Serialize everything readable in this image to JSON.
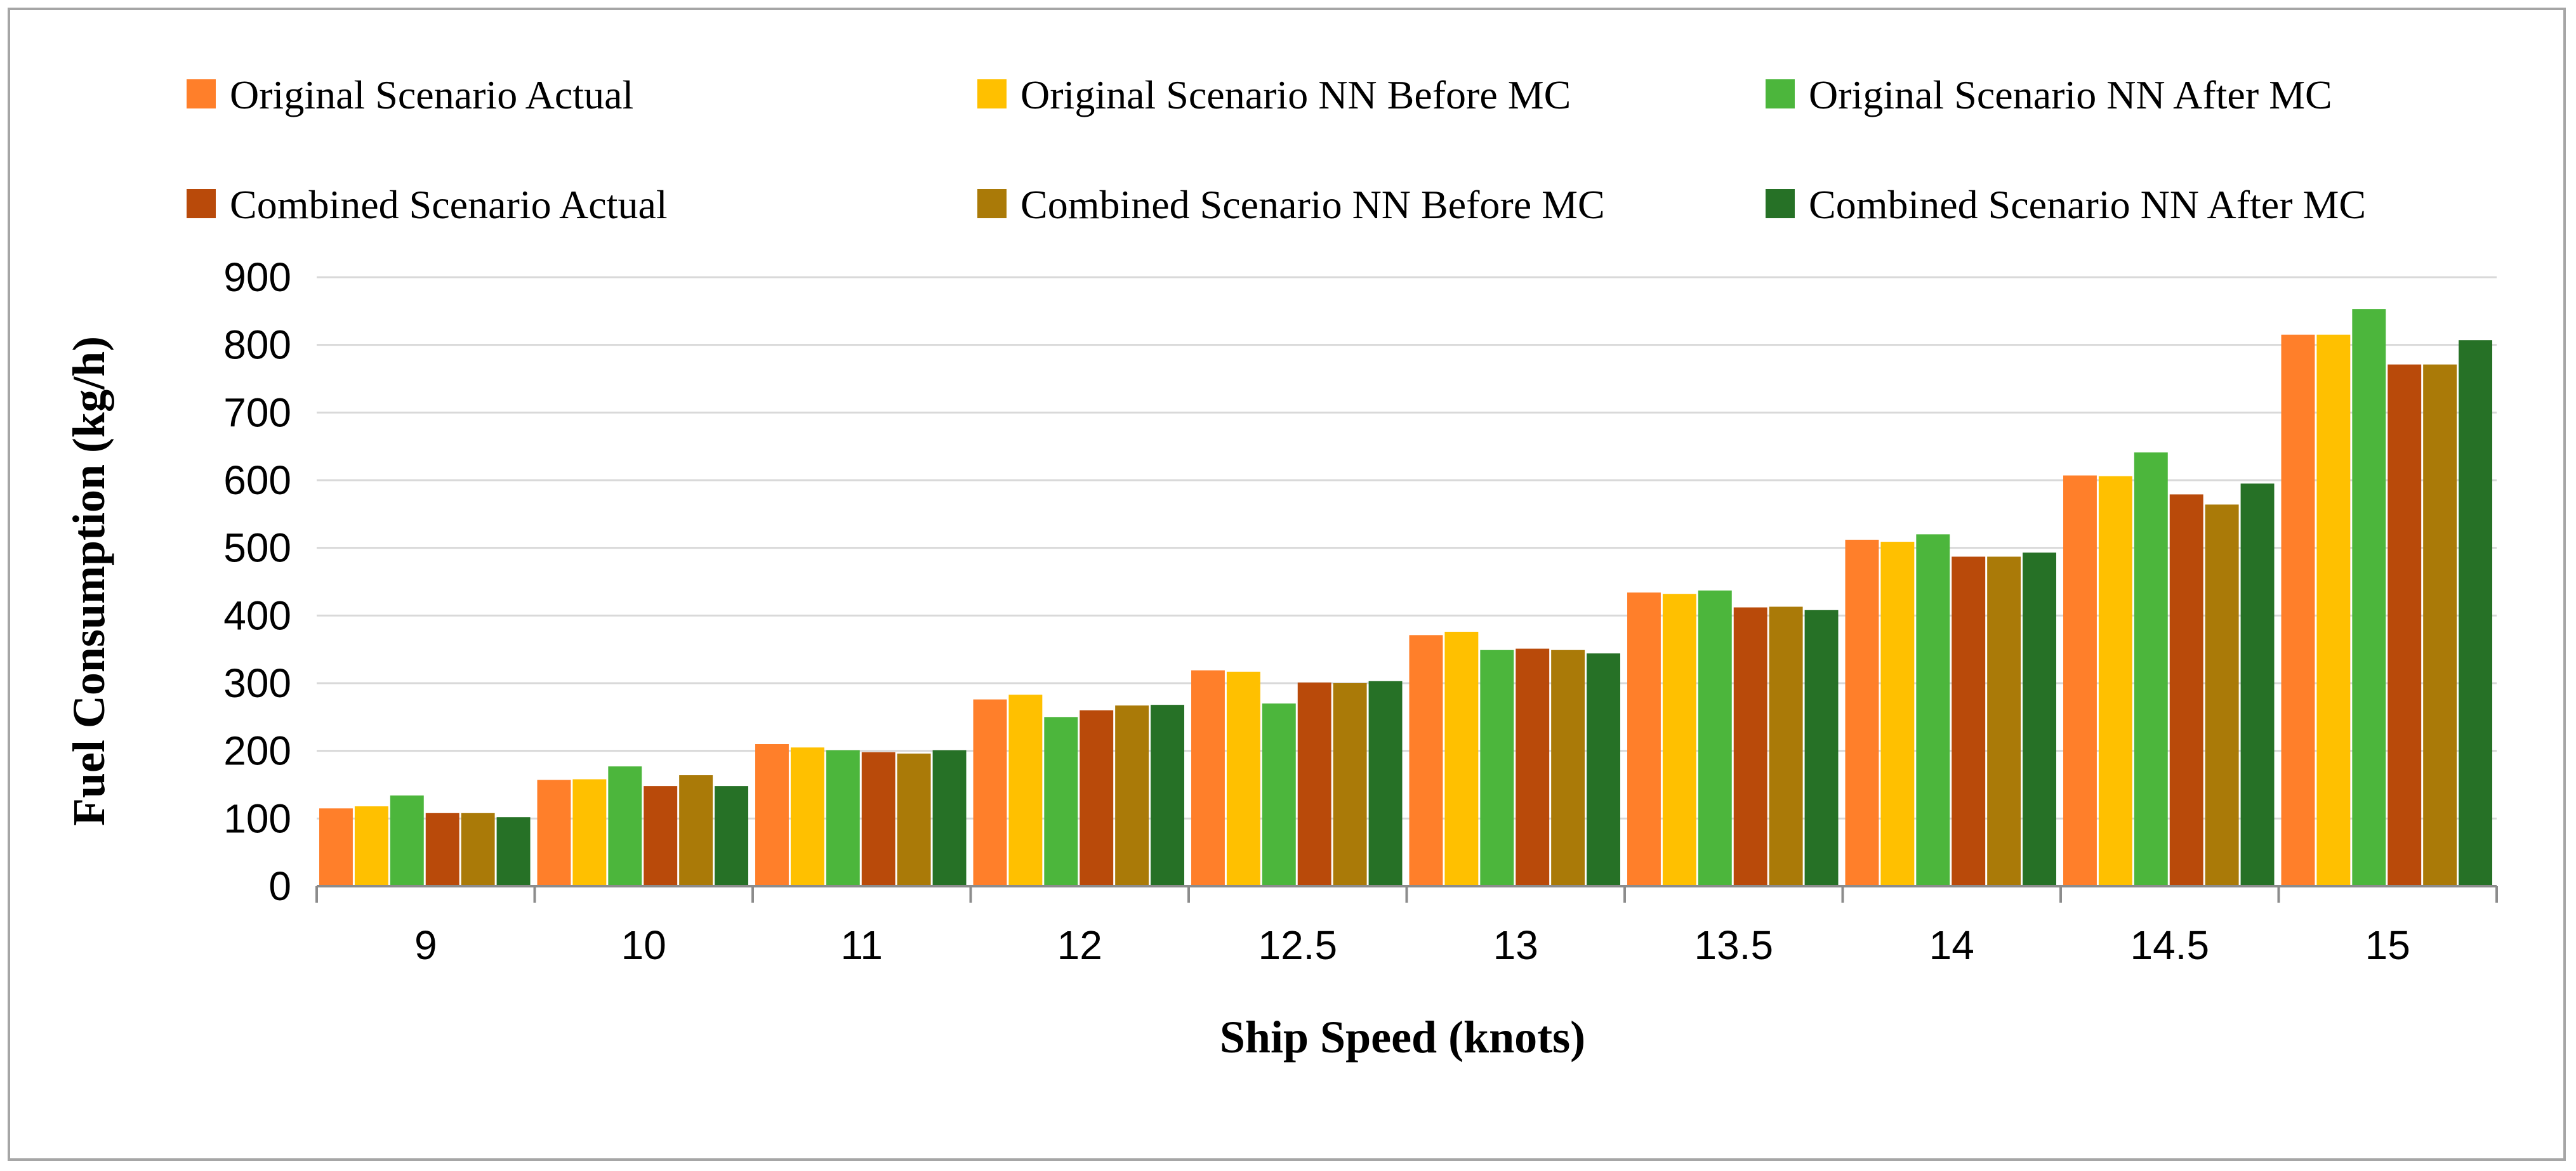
{
  "chart_data": {
    "type": "bar",
    "xlabel": "Ship Speed (knots)",
    "ylabel": "Fuel Consumption (kg/h)",
    "ylim": [
      0,
      900
    ],
    "yticks": [
      "0",
      "100",
      "200",
      "300",
      "400",
      "500",
      "600",
      "700",
      "800",
      "900"
    ],
    "grid": true,
    "legend_position": "top",
    "categories": [
      "9",
      "10",
      "11",
      "12",
      "12.5",
      "13",
      "13.5",
      "14",
      "14.5",
      "15"
    ],
    "series": [
      {
        "name": "Original Scenario Actual",
        "color": "#FF7F2A",
        "values": [
          115,
          157,
          210,
          276,
          319,
          371,
          434,
          512,
          607,
          815
        ]
      },
      {
        "name": "Original Scenario NN Before MC",
        "color": "#FFC000",
        "values": [
          118,
          158,
          205,
          283,
          317,
          376,
          432,
          509,
          606,
          815
        ]
      },
      {
        "name": "Original Scenario NN After MC",
        "color": "#4CB63C",
        "values": [
          134,
          177,
          201,
          250,
          270,
          349,
          437,
          520,
          641,
          853
        ]
      },
      {
        "name": "Combined Scenario Actual",
        "color": "#B94A0A",
        "values": [
          108,
          148,
          198,
          260,
          301,
          351,
          412,
          487,
          579,
          771
        ]
      },
      {
        "name": "Combined Scenario NN Before MC",
        "color": "#AA7A08",
        "values": [
          108,
          164,
          196,
          267,
          300,
          349,
          413,
          487,
          564,
          771
        ]
      },
      {
        "name": "Combined Scenario NN After MC",
        "color": "#267126",
        "values": [
          102,
          148,
          201,
          268,
          303,
          344,
          408,
          493,
          595,
          807
        ]
      }
    ]
  }
}
